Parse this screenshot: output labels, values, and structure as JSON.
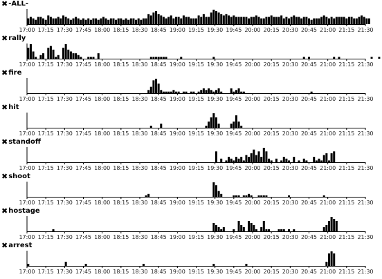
{
  "chart_data": {
    "type": "bar",
    "x_ticks": [
      "17:00",
      "17:15",
      "17:30",
      "17:45",
      "18:00",
      "18:15",
      "18:30",
      "18:45",
      "19:00",
      "19:15",
      "19:30",
      "19:45",
      "20:00",
      "20:15",
      "20:30",
      "20:45",
      "21:00",
      "21:15",
      "21:30"
    ],
    "x_range": [
      "17:00",
      "21:30"
    ],
    "bin_minutes": 2,
    "bar_color": "#000000",
    "axis_color": "#000000",
    "close_icon": "x-close-icon",
    "series": [
      {
        "name": "-ALL-",
        "values": [
          4,
          5,
          4,
          3,
          5,
          5,
          4,
          3,
          6,
          5,
          4,
          4,
          5,
          4,
          6,
          5,
          4,
          3,
          4,
          5,
          4,
          3,
          4,
          3,
          4,
          3,
          4,
          4,
          3,
          4,
          5,
          4,
          3,
          4,
          4,
          3,
          4,
          4,
          3,
          4,
          3,
          4,
          4,
          3,
          4,
          3,
          4,
          4,
          7,
          6,
          8,
          9,
          7,
          6,
          5,
          4,
          5,
          6,
          4,
          5,
          5,
          4,
          6,
          5,
          5,
          4,
          4,
          4,
          6,
          5,
          7,
          5,
          5,
          8,
          10,
          9,
          8,
          7,
          6,
          7,
          6,
          5,
          6,
          5,
          5,
          5,
          5,
          5,
          4,
          5,
          5,
          6,
          5,
          4,
          4,
          5,
          5,
          6,
          5,
          5,
          5,
          6,
          4,
          5,
          4,
          5,
          6,
          5,
          5,
          4,
          5,
          5,
          4,
          3,
          4,
          4,
          4,
          5,
          6,
          5,
          4,
          5,
          4,
          5,
          5,
          5,
          5,
          4,
          5,
          5,
          4,
          4,
          5,
          6,
          5,
          4,
          4
        ]
      },
      {
        "name": "rally",
        "values": [
          6,
          8,
          4,
          1,
          0,
          2,
          3,
          0,
          6,
          7,
          5,
          1,
          2,
          0,
          6,
          8,
          5,
          4,
          3,
          3,
          2,
          1,
          0,
          0,
          1,
          1,
          1,
          0,
          3,
          0,
          0,
          0,
          0,
          0,
          0,
          0,
          0,
          0,
          0,
          0,
          0,
          0,
          0,
          0,
          0,
          0,
          0,
          0,
          0,
          1,
          1,
          1,
          1,
          1,
          1,
          1,
          0,
          0,
          0,
          0,
          0,
          1,
          0,
          0,
          0,
          0,
          0,
          0,
          0,
          0,
          0,
          0,
          0,
          0,
          1,
          0,
          0,
          0,
          0,
          0,
          0,
          0,
          0,
          0,
          0,
          0,
          0,
          0,
          0,
          0,
          0,
          0,
          0,
          0,
          0,
          0,
          0,
          0,
          0,
          0,
          0,
          0,
          0,
          0,
          0,
          0,
          0,
          0,
          0,
          0,
          1,
          0,
          1,
          0,
          0,
          0,
          0,
          0,
          0,
          0,
          0,
          0,
          1,
          0,
          1,
          0,
          0,
          0,
          0,
          0,
          0,
          0,
          0,
          0,
          0,
          0,
          0,
          1,
          0,
          0,
          1,
          0,
          0
        ]
      },
      {
        "name": "fire",
        "values": [
          0,
          0,
          0,
          0,
          0,
          0,
          0,
          0,
          0,
          0,
          0,
          0,
          0,
          0,
          0,
          0,
          0,
          0,
          0,
          0,
          0,
          0,
          0,
          0,
          0,
          0,
          0,
          0,
          0,
          0,
          0,
          0,
          0,
          0,
          0,
          0,
          0,
          0,
          0,
          0,
          0,
          0,
          0,
          0,
          0,
          0,
          0,
          0,
          2,
          4,
          8,
          9,
          6,
          2,
          1,
          1,
          1,
          1,
          2,
          1,
          1,
          0,
          1,
          1,
          0,
          1,
          1,
          0,
          1,
          2,
          3,
          2,
          3,
          2,
          1,
          2,
          3,
          1,
          0,
          0,
          0,
          3,
          1,
          2,
          3,
          1,
          1,
          0,
          0,
          0,
          0,
          0,
          0,
          0,
          0,
          0,
          0,
          0,
          0,
          0,
          0,
          0,
          0,
          0,
          0,
          0,
          0,
          0,
          0,
          0,
          0,
          0,
          0,
          1,
          0,
          0,
          0,
          0,
          0,
          0,
          0,
          0,
          0,
          0,
          0,
          0,
          0,
          0,
          0,
          0,
          0,
          0,
          0,
          0,
          0,
          0,
          0
        ]
      },
      {
        "name": "hit",
        "values": [
          0,
          0,
          0,
          0,
          0,
          0,
          0,
          0,
          0,
          0,
          0,
          0,
          0,
          0,
          0,
          0,
          0,
          0,
          0,
          0,
          0,
          0,
          0,
          0,
          0,
          0,
          0,
          0,
          0,
          0,
          0,
          0,
          0,
          0,
          0,
          0,
          0,
          0,
          0,
          0,
          0,
          0,
          0,
          0,
          0,
          0,
          0,
          0,
          0,
          1,
          0,
          0,
          0,
          2,
          0,
          0,
          0,
          0,
          0,
          0,
          0,
          0,
          0,
          0,
          0,
          0,
          0,
          0,
          0,
          0,
          0,
          1,
          3,
          5,
          7,
          5,
          2,
          0,
          0,
          0,
          0,
          2,
          3,
          6,
          3,
          1,
          0,
          0,
          0,
          0,
          0,
          0,
          0,
          0,
          0,
          0,
          0,
          0,
          0,
          0,
          0,
          0,
          0,
          0,
          0,
          0,
          0,
          0,
          0,
          0,
          0,
          0,
          0,
          0,
          0,
          0,
          0,
          0,
          0,
          0,
          0,
          0,
          0,
          0,
          0,
          0,
          0,
          0,
          0,
          0,
          0,
          0,
          0,
          0,
          0,
          0,
          0
        ]
      },
      {
        "name": "standoff",
        "values": [
          0,
          0,
          0,
          0,
          0,
          0,
          0,
          0,
          0,
          0,
          0,
          0,
          0,
          0,
          0,
          0,
          0,
          0,
          0,
          0,
          0,
          0,
          0,
          0,
          0,
          0,
          0,
          0,
          0,
          0,
          0,
          0,
          0,
          0,
          0,
          0,
          0,
          0,
          0,
          0,
          0,
          0,
          0,
          0,
          0,
          0,
          0,
          0,
          0,
          0,
          0,
          0,
          0,
          0,
          0,
          0,
          0,
          0,
          0,
          0,
          0,
          0,
          0,
          0,
          0,
          0,
          0,
          0,
          0,
          0,
          0,
          0,
          0,
          0,
          0,
          0,
          0,
          0,
          0,
          0,
          0,
          0,
          0,
          0,
          0,
          0,
          0,
          0,
          0,
          0,
          0,
          0,
          0,
          0,
          0,
          0,
          0,
          0,
          0,
          0,
          0,
          0,
          0,
          0,
          0,
          0,
          0,
          0,
          0,
          0,
          0,
          0,
          0,
          0,
          0,
          0,
          0,
          0,
          0,
          0,
          0,
          0,
          0,
          0,
          0,
          0,
          0,
          0,
          0,
          0,
          0,
          0,
          0,
          0,
          0,
          0,
          0
        ]
      },
      {
        "name": "shoot",
        "values": [
          0,
          0,
          0,
          0,
          0,
          0,
          0,
          0,
          0,
          0,
          0,
          0,
          0,
          0,
          0,
          0,
          0,
          0,
          0,
          0,
          0,
          0,
          0,
          0,
          0,
          0,
          0,
          0,
          0,
          0,
          0,
          0,
          0,
          0,
          0,
          0,
          0,
          0,
          0,
          0,
          0,
          0,
          0,
          0,
          0,
          0,
          0,
          0,
          0,
          0,
          0,
          0,
          0,
          0,
          0,
          0,
          0,
          0,
          0,
          0,
          0,
          0,
          0,
          0,
          0,
          0,
          0,
          0,
          0,
          0,
          0,
          0,
          0,
          0,
          0,
          0,
          0,
          0,
          0,
          0,
          0,
          0,
          0,
          0,
          0,
          0,
          0,
          0,
          0,
          0,
          0,
          0,
          0,
          0,
          0,
          0,
          0,
          0,
          0,
          0,
          0,
          0,
          0,
          0,
          0,
          0,
          0,
          0,
          0,
          0,
          0,
          0,
          0,
          0,
          0,
          0,
          0,
          0,
          0,
          0,
          0,
          0,
          0,
          0,
          0,
          0,
          0,
          0,
          0,
          0,
          0,
          0,
          0,
          0,
          0,
          0,
          0
        ]
      },
      {
        "name": "hostage",
        "values": [
          0,
          0,
          0,
          0,
          0,
          0,
          0,
          0,
          0,
          0,
          0,
          0,
          0,
          0,
          0,
          0,
          0,
          0,
          0,
          0,
          0,
          0,
          0,
          0,
          0,
          0,
          0,
          0,
          0,
          0,
          0,
          0,
          0,
          0,
          0,
          0,
          0,
          0,
          0,
          0,
          0,
          0,
          0,
          0,
          0,
          0,
          0,
          0,
          0,
          0,
          0,
          0,
          0,
          0,
          0,
          0,
          0,
          0,
          0,
          0,
          0,
          0,
          0,
          0,
          0,
          0,
          0,
          0,
          0,
          0,
          0,
          0,
          0,
          0,
          0,
          0,
          0,
          0,
          0,
          0,
          0,
          0,
          0,
          0,
          0,
          0,
          0,
          0,
          0,
          0,
          0,
          0,
          0,
          0,
          0,
          0,
          0,
          0,
          0,
          0,
          0,
          0,
          0,
          0,
          0,
          0,
          0,
          0,
          0,
          0,
          0,
          0,
          0,
          0,
          0,
          0,
          0,
          0,
          0,
          0,
          0,
          0,
          0,
          0,
          0,
          0,
          0,
          0,
          0,
          0,
          0,
          0,
          0,
          0,
          0,
          0,
          0
        ]
      },
      {
        "name": "arrest",
        "values": [
          1,
          0,
          0,
          0,
          0,
          0,
          0,
          0,
          0,
          0,
          0,
          0,
          0,
          0,
          0,
          0,
          0,
          0,
          0,
          0,
          0,
          0,
          0,
          0,
          0,
          0,
          0,
          0,
          0,
          0,
          0,
          0,
          0,
          0,
          0,
          0,
          0,
          0,
          0,
          0,
          0,
          0,
          0,
          0,
          0,
          0,
          0,
          0,
          0,
          0,
          0,
          0,
          0,
          0,
          0,
          0,
          0,
          0,
          0,
          0,
          0,
          0,
          0,
          0,
          0,
          0,
          0,
          0,
          0,
          0,
          0,
          0,
          0,
          0,
          0,
          0,
          0,
          0,
          0,
          0,
          0,
          0,
          0,
          0,
          0,
          0,
          0,
          0,
          0,
          0,
          0,
          0,
          0,
          0,
          0,
          0,
          0,
          0,
          0,
          0,
          0,
          0,
          0,
          0,
          0,
          0,
          0,
          0,
          0,
          0,
          0,
          0,
          0,
          0,
          0,
          0,
          0,
          0,
          0,
          0,
          0,
          0,
          0,
          0,
          0,
          0,
          0,
          0,
          0,
          0,
          0,
          0,
          0,
          0,
          0,
          0,
          0
        ]
      }
    ]
  }
}
